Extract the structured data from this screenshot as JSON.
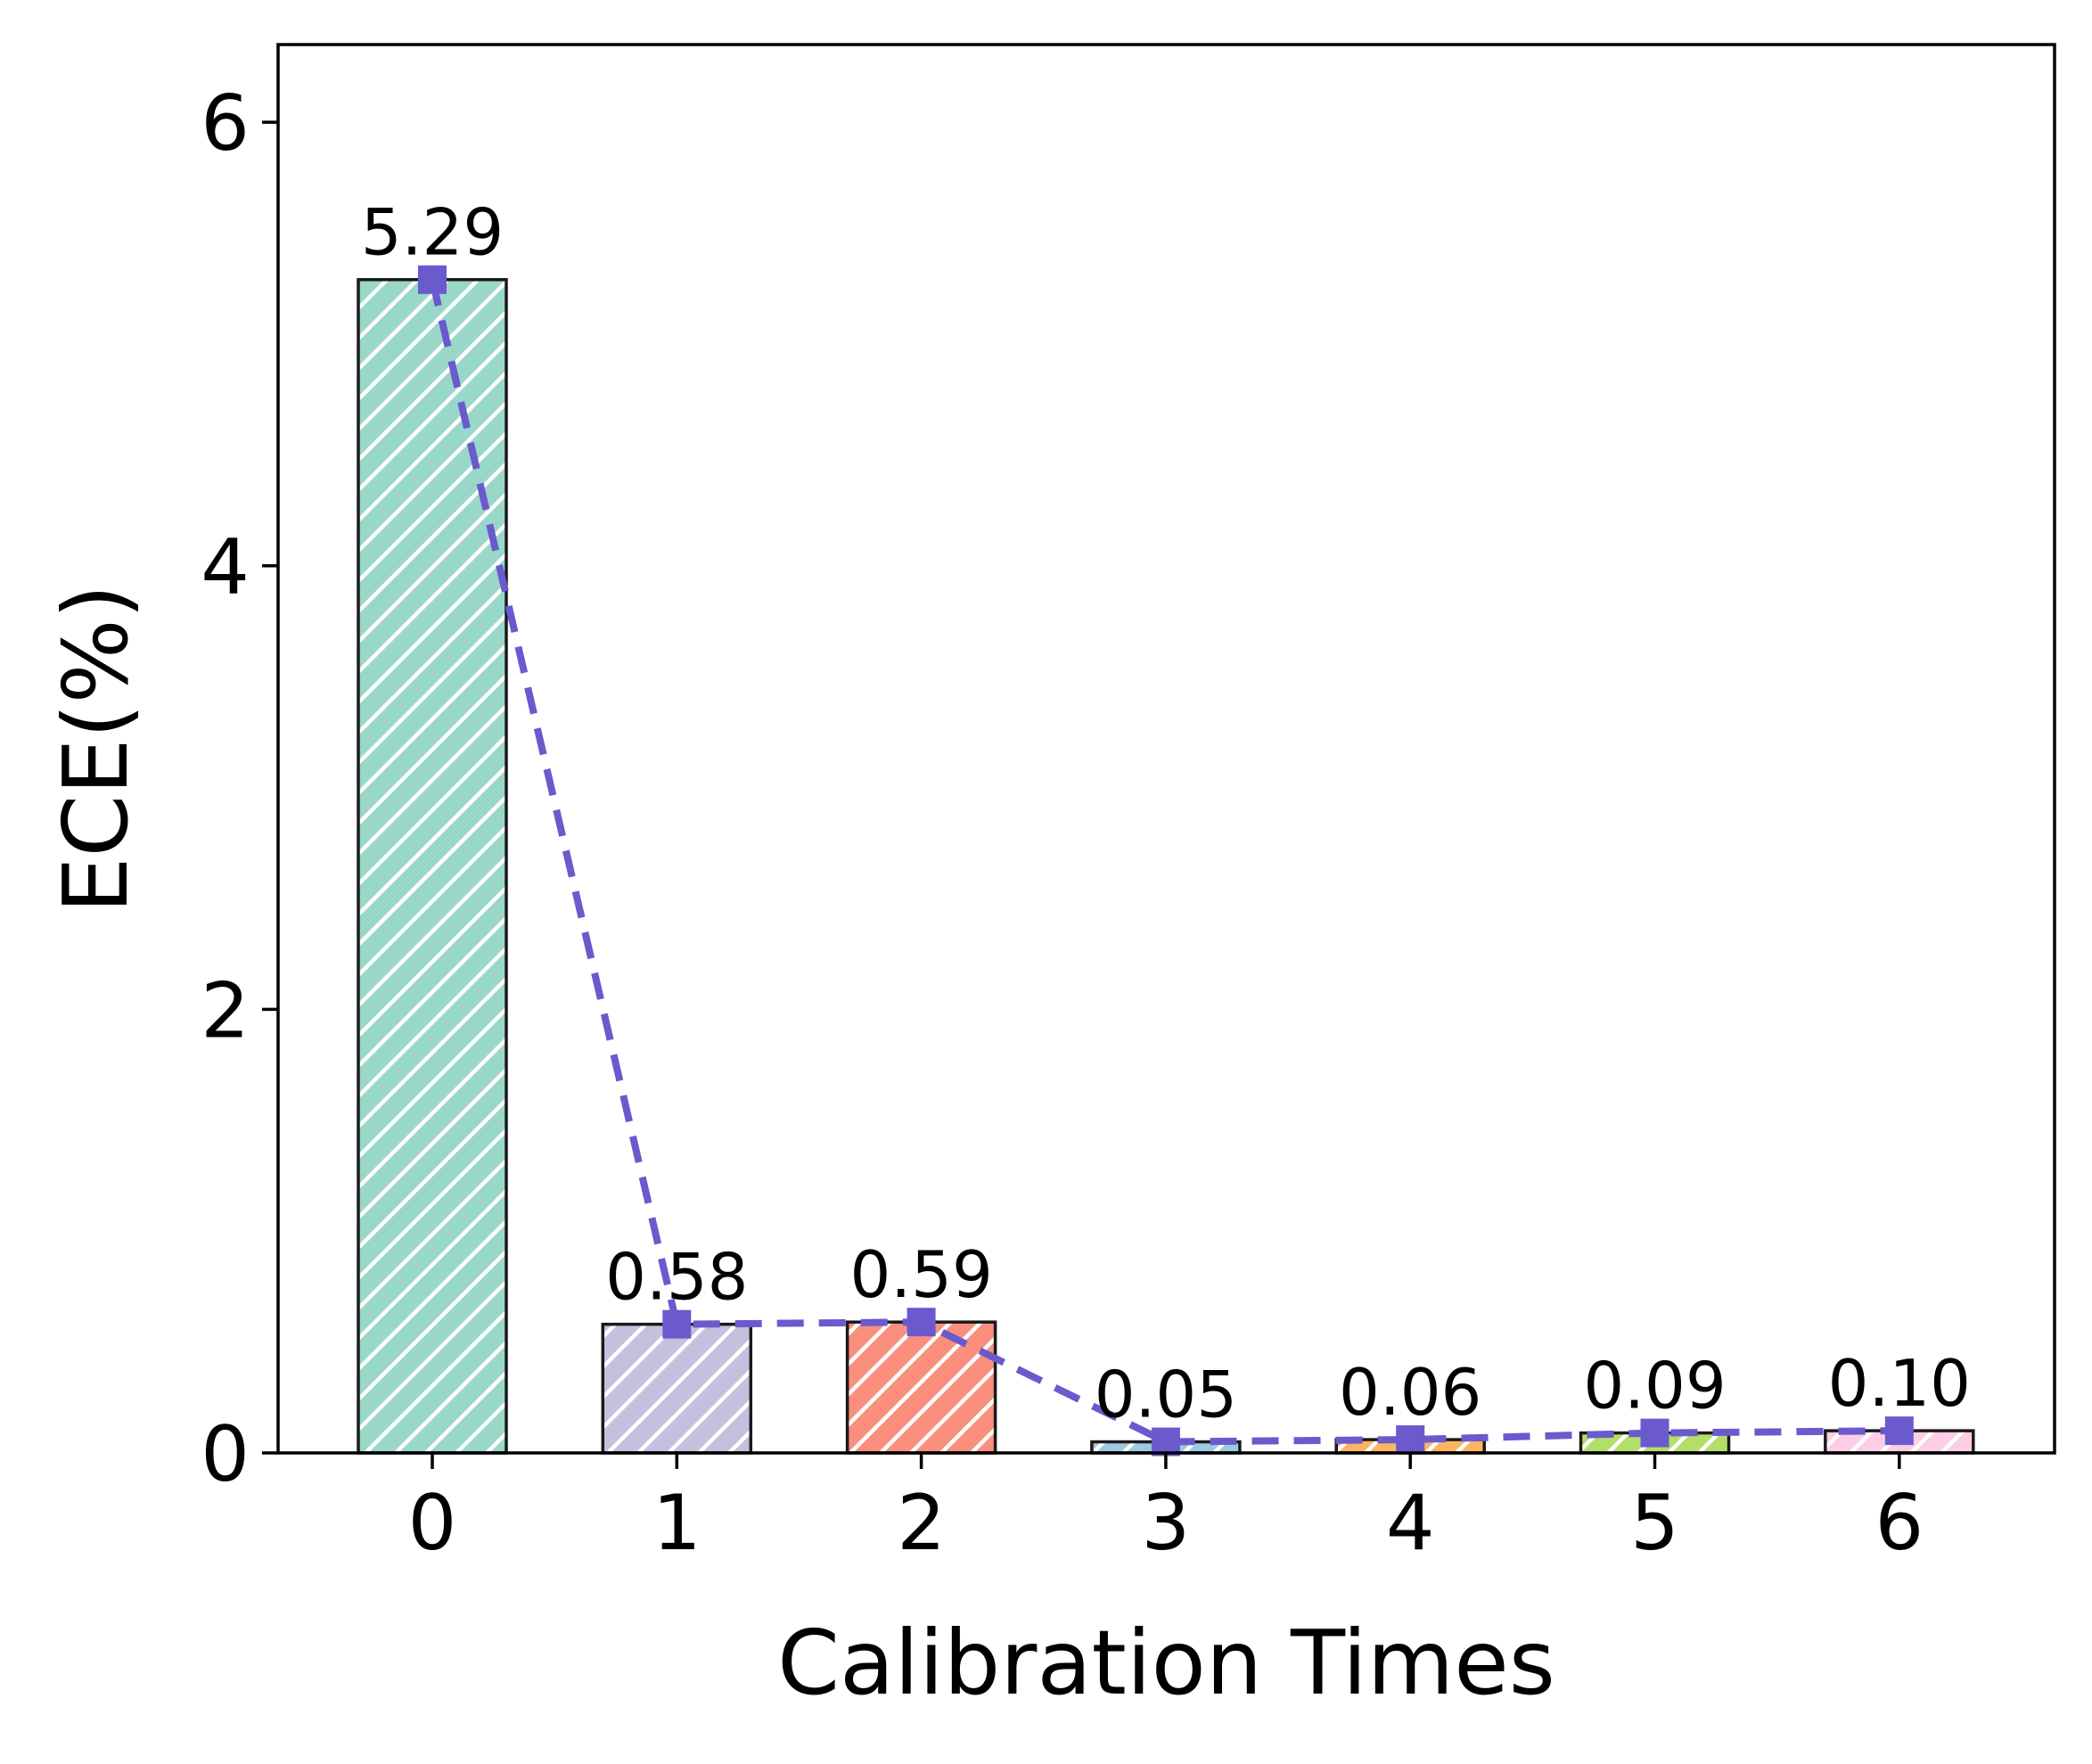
{
  "chart_data": {
    "type": "bar",
    "categories": [
      "0",
      "1",
      "2",
      "3",
      "4",
      "5",
      "6"
    ],
    "values": [
      5.29,
      0.58,
      0.59,
      0.05,
      0.06,
      0.09,
      0.1
    ],
    "value_labels": [
      "5.29",
      "0.58",
      "0.59",
      "0.05",
      "0.06",
      "0.09",
      "0.10"
    ],
    "bar_colors": [
      "#99d8c9",
      "#c5c0de",
      "#fb8f7e",
      "#9ecae1",
      "#fdb462",
      "#b3de69",
      "#fccde5"
    ],
    "bar_hatch": "diagonal",
    "overlay_line": {
      "style": "dashed",
      "marker": "square",
      "color": "#6a5acd",
      "values": [
        5.29,
        0.58,
        0.59,
        0.05,
        0.06,
        0.09,
        0.1
      ]
    },
    "xlabel": "Calibration Times",
    "ylabel": "ECE(%)",
    "yticks": [
      0,
      2,
      4,
      6
    ],
    "ylim": [
      0,
      6.35
    ],
    "grid": false,
    "legend": "none"
  }
}
